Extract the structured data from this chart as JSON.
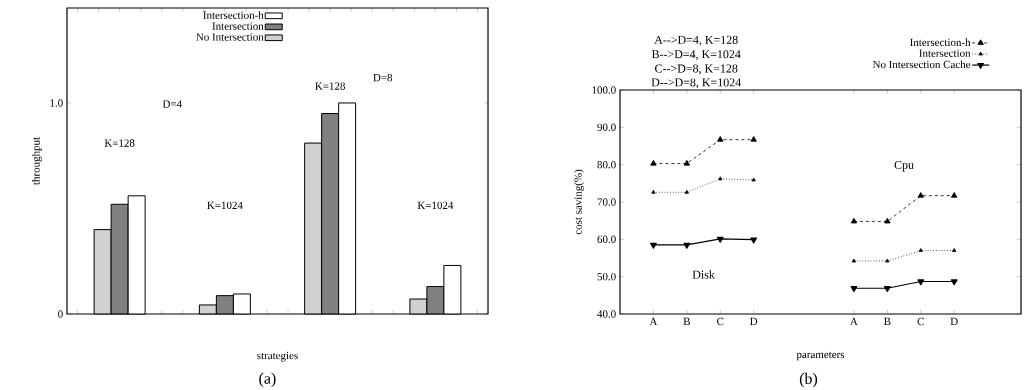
{
  "chart_data": [
    {
      "type": "bar",
      "categories": [
        null,
        null,
        null,
        null
      ],
      "xlabel": "strategies",
      "ylabel": "throughput",
      "ylim": [
        0,
        1.45
      ],
      "yticks": [
        0,
        {
          "value": 1,
          "label": "1.0"
        }
      ],
      "legend": "top",
      "series": [
        {
          "name": "No Intersection",
          "color": "#d0d0d0",
          "values": [
            0.4,
            0.043,
            0.81,
            0.071
          ]
        },
        {
          "name": "Intersection",
          "color": "#808080",
          "values": [
            0.52,
            0.087,
            0.95,
            0.13
          ]
        },
        {
          "name": "Intersection-h",
          "color": "#ffffff",
          "values": [
            0.56,
            0.095,
            1.0,
            0.23
          ]
        }
      ],
      "annotations": [
        "K=128",
        "D=4",
        "K=1024",
        "K=128",
        "D=8",
        "K=1024",
        "(a)"
      ]
    },
    {
      "type": "line",
      "categories": [
        "A",
        "B",
        "C",
        "D",
        null,
        null,
        "A",
        "B",
        "C",
        "D"
      ],
      "xlabel": "parameters",
      "ylabel": "cost saving(%)",
      "ylim": [
        40,
        100
      ],
      "yticks": [
        {
          "value": 40,
          "label": "40.0"
        },
        {
          "value": 50,
          "label": "50.0"
        },
        {
          "value": 60,
          "label": "60.0"
        },
        {
          "value": 70,
          "label": "70.0"
        },
        {
          "value": 80,
          "label": "80.0"
        },
        {
          "value": 90,
          "label": "90.0"
        },
        {
          "value": 100,
          "label": "100.0"
        }
      ],
      "legend": "top right",
      "series": [
        {
          "name": "Intersection-h",
          "color": "#000000",
          "marker": "triangle",
          "line_style": "dashed",
          "values": [
            80.3,
            80.3,
            86.7,
            86.7,
            null,
            null,
            64.8,
            64.8,
            71.7,
            71.7
          ]
        },
        {
          "name": "Intersection",
          "color": "#000000",
          "marker": "triangle",
          "line_style": "dotted",
          "values": [
            72.6,
            72.6,
            76.2,
            75.9,
            null,
            null,
            54.2,
            54.2,
            57.0,
            57.0
          ]
        },
        {
          "name": "No Intersection Cache",
          "color": "#000000",
          "marker": "triangle down",
          "line_style": "solid",
          "values": [
            58.5,
            58.5,
            60.1,
            59.9,
            null,
            null,
            46.9,
            46.9,
            48.7,
            48.7
          ]
        }
      ],
      "annotations": [
        "A-->D=4, K=128",
        "B-->D=4, K=1024",
        "C-->D=8, K=128",
        "D-->D=8, K=1024",
        "Disk",
        "Cpu",
        "(b)"
      ]
    }
  ]
}
